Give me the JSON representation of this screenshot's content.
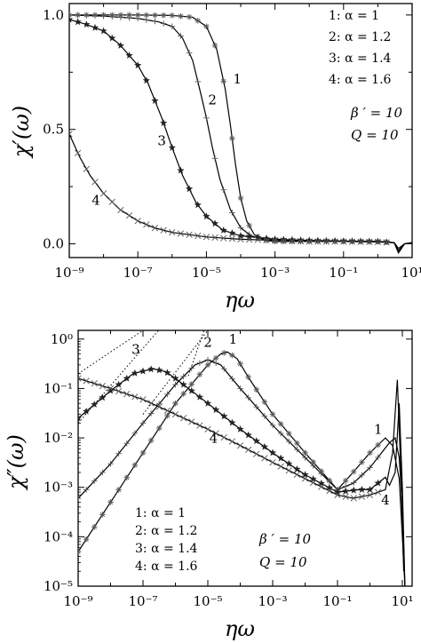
{
  "chart_data": [
    {
      "type": "line",
      "xlabel": "ηω",
      "ylabel": "χ′(ω)",
      "x_scale": "log",
      "xlim": [
        1e-09,
        10
      ],
      "ylim": [
        -0.06,
        1.05
      ],
      "x_ticks": [
        {
          "v": 1e-09,
          "label": "10⁻⁹"
        },
        {
          "v": 1e-07,
          "label": "10⁻⁷"
        },
        {
          "v": 1e-05,
          "label": "10⁻⁵"
        },
        {
          "v": 0.001,
          "label": "10⁻³"
        },
        {
          "v": 0.1,
          "label": "10⁻¹"
        },
        {
          "v": 10,
          "label": "10¹"
        }
      ],
      "y_ticks": [
        {
          "v": 0.0,
          "label": "0.0"
        },
        {
          "v": 0.5,
          "label": "0.5"
        },
        {
          "v": 1.0,
          "label": "1.0"
        }
      ],
      "legend": {
        "placement": "top-right",
        "entries": [
          "1: α = 1",
          "2: α = 1.2",
          "3: α = 1.4",
          "4: α = 1.6"
        ]
      },
      "annotation_lines": [
        "β ′ = 10",
        "Q = 10"
      ],
      "curve_labels": [
        {
          "text": "1",
          "x": 8e-05,
          "y": 0.7
        },
        {
          "text": "2",
          "x": 1.5e-05,
          "y": 0.61
        },
        {
          "text": "3",
          "x": 5e-07,
          "y": 0.43
        },
        {
          "text": "4",
          "x": 6e-09,
          "y": 0.17
        }
      ],
      "series": [
        {
          "name": "1",
          "marker": "asterisk",
          "points": [
            [
              1e-09,
              1.0
            ],
            [
              1e-08,
              1.0
            ],
            [
              1e-07,
              1.0
            ],
            [
              1e-06,
              0.998
            ],
            [
              4e-06,
              0.99
            ],
            [
              1e-05,
              0.95
            ],
            [
              2e-05,
              0.85
            ],
            [
              3.5e-05,
              0.68
            ],
            [
              5e-05,
              0.52
            ],
            [
              7e-05,
              0.35
            ],
            [
              0.0001,
              0.2
            ],
            [
              0.00015,
              0.1
            ],
            [
              0.00025,
              0.04
            ],
            [
              0.0005,
              0.015
            ],
            [
              0.001,
              0.01
            ],
            [
              0.01,
              0.01
            ],
            [
              0.1,
              0.01
            ],
            [
              1,
              0.01
            ],
            [
              3,
              0.005
            ],
            [
              4,
              -0.04
            ],
            [
              6,
              0.0
            ],
            [
              10,
              0.005
            ]
          ]
        },
        {
          "name": "2",
          "marker": "plus",
          "points": [
            [
              1e-09,
              1.0
            ],
            [
              1e-08,
              0.995
            ],
            [
              1e-07,
              0.985
            ],
            [
              4e-07,
              0.97
            ],
            [
              1e-06,
              0.95
            ],
            [
              2e-06,
              0.9
            ],
            [
              4e-06,
              0.8
            ],
            [
              7e-06,
              0.65
            ],
            [
              1e-05,
              0.55
            ],
            [
              1.5e-05,
              0.42
            ],
            [
              2.5e-05,
              0.28
            ],
            [
              5e-05,
              0.15
            ],
            [
              0.0001,
              0.07
            ],
            [
              0.0002,
              0.035
            ],
            [
              0.0005,
              0.02
            ],
            [
              0.001,
              0.015
            ],
            [
              0.01,
              0.012
            ],
            [
              0.1,
              0.01
            ],
            [
              1,
              0.01
            ],
            [
              3,
              0.005
            ],
            [
              4,
              -0.03
            ],
            [
              6,
              0.0
            ],
            [
              10,
              0.005
            ]
          ]
        },
        {
          "name": "3",
          "marker": "star",
          "points": [
            [
              1e-09,
              0.98
            ],
            [
              3e-09,
              0.96
            ],
            [
              1e-08,
              0.93
            ],
            [
              3e-08,
              0.87
            ],
            [
              1e-07,
              0.78
            ],
            [
              2e-07,
              0.7
            ],
            [
              5e-07,
              0.55
            ],
            [
              1e-06,
              0.42
            ],
            [
              2e-06,
              0.3
            ],
            [
              5e-06,
              0.18
            ],
            [
              1e-05,
              0.12
            ],
            [
              3e-05,
              0.06
            ],
            [
              0.0001,
              0.035
            ],
            [
              0.001,
              0.02
            ],
            [
              0.01,
              0.015
            ],
            [
              0.1,
              0.012
            ],
            [
              1,
              0.01
            ],
            [
              3,
              0.005
            ],
            [
              4,
              -0.03
            ],
            [
              6,
              0.0
            ],
            [
              10,
              0.005
            ]
          ]
        },
        {
          "name": "4",
          "marker": "cross",
          "points": [
            [
              1e-09,
              0.48
            ],
            [
              2e-09,
              0.38
            ],
            [
              4e-09,
              0.3
            ],
            [
              1e-08,
              0.22
            ],
            [
              3e-08,
              0.15
            ],
            [
              1e-07,
              0.1
            ],
            [
              3e-07,
              0.07
            ],
            [
              1e-06,
              0.05
            ],
            [
              1e-05,
              0.03
            ],
            [
              0.0001,
              0.02
            ],
            [
              0.001,
              0.015
            ],
            [
              0.01,
              0.01
            ],
            [
              0.1,
              0.01
            ],
            [
              1,
              0.008
            ],
            [
              3,
              0.005
            ],
            [
              4,
              -0.02
            ],
            [
              6,
              0.0
            ],
            [
              10,
              0.005
            ]
          ]
        }
      ]
    },
    {
      "type": "line",
      "xlabel": "ηω",
      "ylabel": "χ″(ω)",
      "x_scale": "log",
      "y_scale": "log",
      "xlim": [
        1e-09,
        20
      ],
      "ylim": [
        1e-05,
        1.5
      ],
      "x_ticks": [
        {
          "v": 1e-09,
          "label": "10⁻⁹"
        },
        {
          "v": 1e-07,
          "label": "10⁻⁷"
        },
        {
          "v": 1e-05,
          "label": "10⁻⁵"
        },
        {
          "v": 0.001,
          "label": "10⁻³"
        },
        {
          "v": 0.1,
          "label": "10⁻¹"
        },
        {
          "v": 10,
          "label": "10¹"
        }
      ],
      "y_ticks": [
        {
          "v": 1e-05,
          "label": "10⁻⁵"
        },
        {
          "v": 0.0001,
          "label": "10⁻⁴"
        },
        {
          "v": 0.001,
          "label": "10⁻³"
        },
        {
          "v": 0.01,
          "label": "10⁻²"
        },
        {
          "v": 0.1,
          "label": "10⁻¹"
        },
        {
          "v": 1,
          "label": "10⁰"
        }
      ],
      "legend": {
        "placement": "bottom-left",
        "entries": [
          "1: α = 1",
          "2: α = 1.2",
          "3: α = 1.4",
          "4: α = 1.6"
        ]
      },
      "annotation_lines": [
        "β ′ = 10",
        "Q = 10"
      ],
      "curve_labels": [
        {
          "text": "1",
          "x": 6e-05,
          "y": 0.8
        },
        {
          "text": "2",
          "x": 1e-05,
          "y": 0.7
        },
        {
          "text": "3",
          "x": 6e-08,
          "y": 0.5
        },
        {
          "text": "4",
          "x": 1.5e-05,
          "y": 0.008
        },
        {
          "text": "1",
          "x": 1.8,
          "y": 0.012
        },
        {
          "text": "4",
          "x": 3,
          "y": 0.00045
        }
      ],
      "series": [
        {
          "name": "1",
          "marker": "asterisk",
          "points": [
            [
              1e-09,
              5e-05
            ],
            [
              1e-08,
              0.0005
            ],
            [
              1e-07,
              0.005
            ],
            [
              1e-06,
              0.05
            ],
            [
              1e-05,
              0.3
            ],
            [
              2.5e-05,
              0.5
            ],
            [
              4e-05,
              0.55
            ],
            [
              8e-05,
              0.4
            ],
            [
              0.0002,
              0.15
            ],
            [
              0.001,
              0.03
            ],
            [
              0.01,
              0.005
            ],
            [
              0.05,
              0.0015
            ],
            [
              0.1,
              0.0009
            ],
            [
              0.3,
              0.002
            ],
            [
              1,
              0.005
            ],
            [
              3,
              0.01
            ],
            [
              5,
              0.007
            ],
            [
              8,
              0.0015
            ],
            [
              10,
              0.0001
            ],
            [
              12,
              1e-05
            ]
          ]
        },
        {
          "name": "2",
          "marker": "plus",
          "points": [
            [
              1e-09,
              0.0006
            ],
            [
              1e-08,
              0.003
            ],
            [
              1e-07,
              0.02
            ],
            [
              1e-06,
              0.12
            ],
            [
              4e-06,
              0.3
            ],
            [
              1e-05,
              0.38
            ],
            [
              2.5e-05,
              0.3
            ],
            [
              0.0001,
              0.1
            ],
            [
              0.001,
              0.018
            ],
            [
              0.01,
              0.004
            ],
            [
              0.1,
              0.0009
            ],
            [
              0.3,
              0.0012
            ],
            [
              1,
              0.0025
            ],
            [
              4,
              0.008
            ],
            [
              6,
              0.01
            ],
            [
              8,
              0.004
            ],
            [
              10,
              0.0004
            ],
            [
              12,
              1e-05
            ]
          ]
        },
        {
          "name": "3",
          "marker": "star",
          "points": [
            [
              1e-09,
              0.025
            ],
            [
              1e-08,
              0.09
            ],
            [
              5e-08,
              0.2
            ],
            [
              2e-07,
              0.25
            ],
            [
              5e-07,
              0.22
            ],
            [
              1e-06,
              0.16
            ],
            [
              1e-05,
              0.05
            ],
            [
              0.0001,
              0.015
            ],
            [
              0.001,
              0.005
            ],
            [
              0.01,
              0.0018
            ],
            [
              0.1,
              0.0008
            ],
            [
              0.5,
              0.0009
            ],
            [
              1,
              0.0009
            ],
            [
              3,
              0.0016
            ],
            [
              4,
              0.0011
            ],
            [
              6,
              0.002
            ],
            [
              8,
              0.05
            ],
            [
              10,
              0.001
            ],
            [
              12,
              1e-05
            ]
          ]
        },
        {
          "name": "4",
          "marker": "cross",
          "points": [
            [
              1e-09,
              0.16
            ],
            [
              1e-08,
              0.1
            ],
            [
              1e-07,
              0.06
            ],
            [
              1e-06,
              0.03
            ],
            [
              1e-05,
              0.015
            ],
            [
              0.0001,
              0.007
            ],
            [
              0.001,
              0.0032
            ],
            [
              0.01,
              0.0015
            ],
            [
              0.1,
              0.0007
            ],
            [
              0.3,
              0.0006
            ],
            [
              1,
              0.0007
            ],
            [
              3,
              0.0009
            ],
            [
              5,
              0.005
            ],
            [
              7,
              0.15
            ],
            [
              9,
              0.002
            ],
            [
              11,
              2e-05
            ]
          ]
        }
      ],
      "dotted_asymptotes": [
        {
          "name": "1",
          "points": [
            [
              2.5e-06,
              0.18
            ],
            [
              7.6e-06,
              1.5
            ]
          ]
        },
        {
          "name": "2",
          "points": [
            [
              1e-07,
              0.03
            ],
            [
              1e-05,
              1.5
            ]
          ]
        },
        {
          "name": "3",
          "points": [
            [
              1e-09,
              0.02
            ],
            [
              3e-07,
              1.5
            ]
          ]
        },
        {
          "name": "4",
          "points": [
            [
              1e-09,
              0.2
            ],
            [
              1e-07,
              1.5
            ]
          ]
        }
      ]
    }
  ]
}
